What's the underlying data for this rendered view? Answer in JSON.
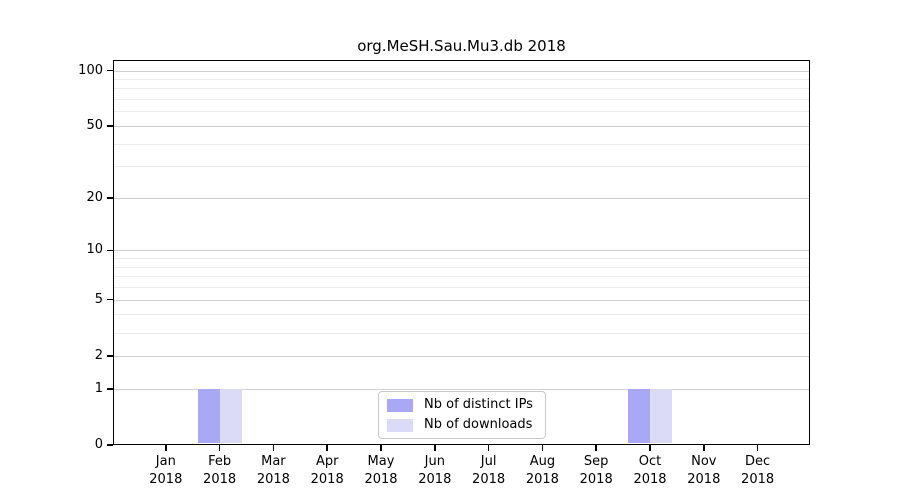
{
  "title": "org.MeSH.Sau.Mu3.db 2018",
  "chart_data": {
    "type": "bar",
    "title": "org.MeSH.Sau.Mu3.db 2018",
    "categories": [
      "Jan 2018",
      "Feb 2018",
      "Mar 2018",
      "Apr 2018",
      "May 2018",
      "Jun 2018",
      "Jul 2018",
      "Aug 2018",
      "Sep 2018",
      "Oct 2018",
      "Nov 2018",
      "Dec 2018"
    ],
    "series": [
      {
        "name": "Nb of distinct IPs",
        "color": "#a8a8f5",
        "values": [
          0,
          1,
          0,
          0,
          0,
          0,
          0,
          0,
          0,
          1,
          0,
          0
        ]
      },
      {
        "name": "Nb of downloads",
        "color": "#dbdbf8",
        "values": [
          0,
          1,
          0,
          0,
          0,
          0,
          0,
          0,
          0,
          1,
          0,
          0
        ]
      }
    ],
    "xlabel": "",
    "ylabel": "",
    "yscale": "log1p",
    "ylim": [
      0,
      113
    ],
    "yticks": [
      0,
      1,
      2,
      5,
      10,
      20,
      50,
      100
    ],
    "minor_gridlines": [
      3,
      4,
      6,
      7,
      8,
      9,
      30,
      40,
      60,
      70,
      80,
      90
    ],
    "grid": true,
    "legend_position": "lower center inside plot"
  },
  "legend": {
    "items": [
      {
        "label": "Nb of distinct IPs",
        "color": "#a8a8f5"
      },
      {
        "label": "Nb of downloads",
        "color": "#dbdbf8"
      }
    ]
  },
  "colors": {
    "background": "#ffffff",
    "axis": "#000000",
    "major_grid": "#d0d0d0",
    "minor_grid": "#ececec",
    "bar_distinct_ips": "#a8a8f5",
    "bar_downloads": "#dbdbf8",
    "legend_border": "#c9c9c9"
  }
}
